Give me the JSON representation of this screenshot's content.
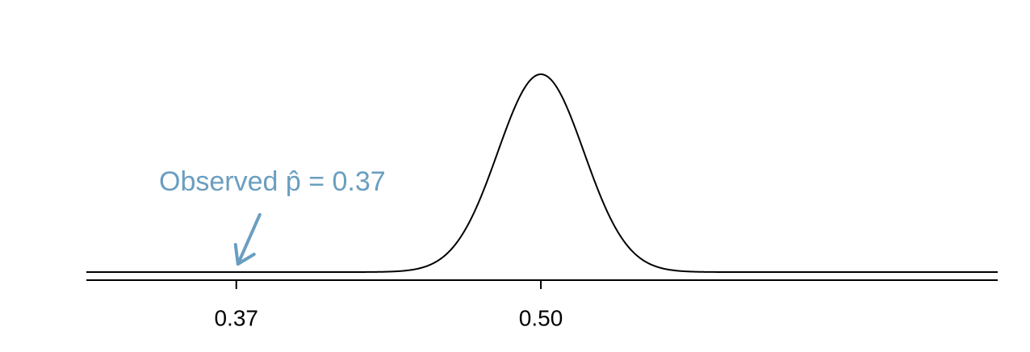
{
  "chart_data": {
    "type": "normal",
    "mean": 0.5,
    "sd": 0.0184,
    "xlim": [
      0.306,
      0.695
    ],
    "xticks": [
      0.37,
      {
        "value": 0.5,
        "label": "0.50"
      }
    ],
    "color": "#000000",
    "annotation": {
      "text": "Observed p̂ = 0.37",
      "x": 0.37,
      "color": "#6a9ec0"
    }
  }
}
